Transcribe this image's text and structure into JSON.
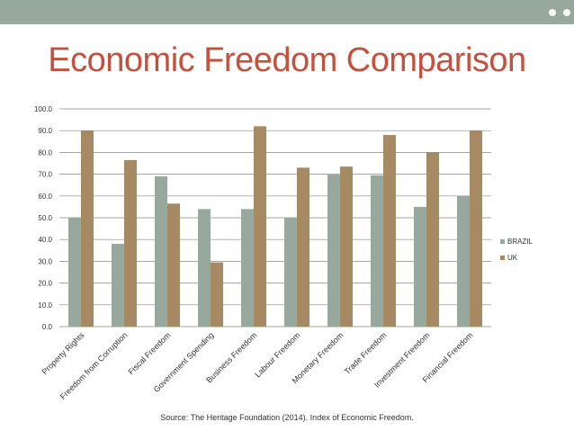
{
  "header": {
    "title": "Economic Freedom Comparison"
  },
  "footer": {
    "source": "Source: The Heritage Foundation (2014). Index of Economic Freedom."
  },
  "colors": {
    "band": "#97a89c",
    "title": "#c4513b",
    "brazil": "#97a89c",
    "uk": "#a58a63",
    "grid": "#888888"
  },
  "chart_data": {
    "type": "bar",
    "title": "",
    "xlabel": "",
    "ylabel": "",
    "ylim": [
      0,
      100
    ],
    "yticks": [
      "0.0",
      "10.0",
      "20.0",
      "30.0",
      "40.0",
      "50.0",
      "60.0",
      "70.0",
      "80.0",
      "90.0",
      "100.0"
    ],
    "categories": [
      "Property Rights",
      "Freedom from Corruption",
      "Fiscal Freedom",
      "Government Spending",
      "Business Freedom",
      "Labour Freedom",
      "Monetary Freedom",
      "Trade Freedom",
      "Investment Freedom",
      "Financial Freedom"
    ],
    "series": [
      {
        "name": "BRAZIL",
        "color": "#97a89c",
        "values": [
          50,
          38,
          69,
          54,
          54,
          50,
          70,
          69.5,
          55,
          60
        ]
      },
      {
        "name": "UK",
        "color": "#a58a63",
        "values": [
          90,
          76.5,
          56.5,
          29.5,
          92,
          73,
          73.5,
          88,
          80,
          90
        ]
      }
    ],
    "legend_position": "right"
  }
}
